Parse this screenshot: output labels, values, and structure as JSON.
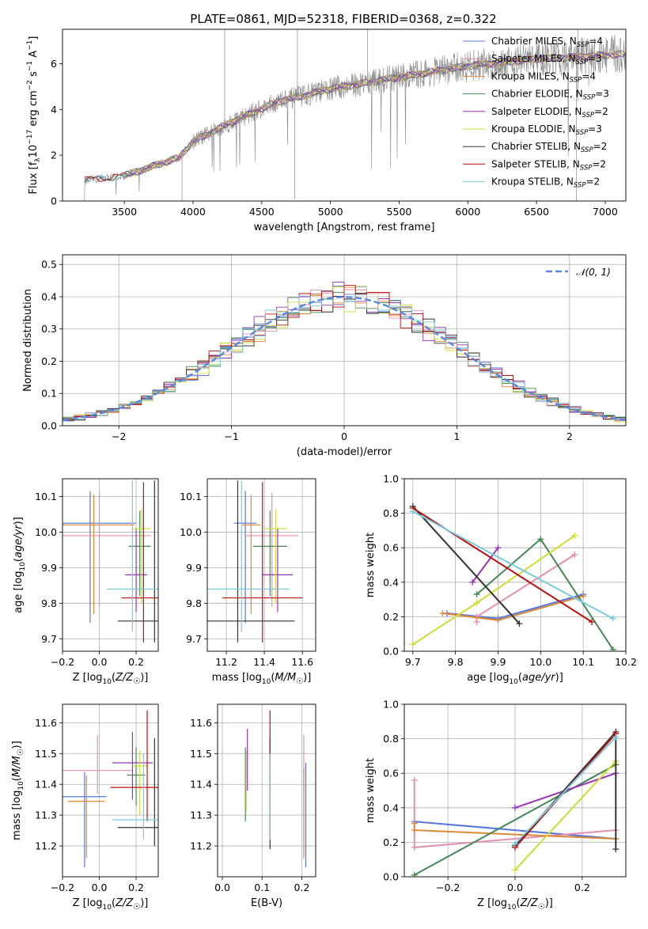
{
  "title": "PLATE=0861, MJD=52318, FIBERID=0368, z=0.322",
  "colors": {
    "chabrier_miles": "#5577dd",
    "salpeter_miles": "#e58fb0",
    "kroupa_miles": "#dd8833",
    "chabrier_elodie": "#448855",
    "salpeter_elodie": "#9933bb",
    "kroupa_elodie": "#ccdd33",
    "chabrier_stelib": "#333333",
    "salpeter_stelib": "#bb1111",
    "kroupa_stelib": "#77ccdd",
    "data": "#888888",
    "gaussian": "#5588dd"
  },
  "chart_data": [
    {
      "id": "spectrum",
      "type": "line",
      "xlabel": "wavelength [Angstrom, rest frame]",
      "ylabel": "Flux [f_λ 10^-17 erg cm^-2 s^-1 A^-1]",
      "xlim": [
        3050,
        7150
      ],
      "ylim": [
        0,
        7.5
      ],
      "xticks": [
        "3500",
        "4000",
        "4500",
        "5000",
        "5500",
        "6000",
        "6500",
        "7000"
      ],
      "yticks": [
        "0",
        "2",
        "4",
        "6"
      ],
      "legend_position": "top-right",
      "legend": [
        {
          "label": "Chabrier MILES, N",
          "sub": "SSP",
          "tail": "=4",
          "key": "chabrier_miles"
        },
        {
          "label": "Salpeter MILES, N",
          "sub": "SSP",
          "tail": "=3",
          "key": "salpeter_miles"
        },
        {
          "label": "Kroupa MILES, N",
          "sub": "SSP",
          "tail": "=4",
          "key": "kroupa_miles"
        },
        {
          "label": "Chabrier ELODIE, N",
          "sub": "SSP",
          "tail": "=3",
          "key": "chabrier_elodie"
        },
        {
          "label": "Salpeter ELODIE, N",
          "sub": "SSP",
          "tail": "=2",
          "key": "salpeter_elodie"
        },
        {
          "label": "Kroupa ELODIE, N",
          "sub": "SSP",
          "tail": "=3",
          "key": "kroupa_elodie"
        },
        {
          "label": "Chabrier STELIB, N",
          "sub": "SSP",
          "tail": "=2",
          "key": "chabrier_stelib"
        },
        {
          "label": "Salpeter STELIB, N",
          "sub": "SSP",
          "tail": "=2",
          "key": "salpeter_stelib"
        },
        {
          "label": "Kroupa STELIB, N",
          "sub": "SSP",
          "tail": "=2",
          "key": "kroupa_stelib"
        }
      ],
      "continuum_anchors": [
        [
          3210,
          0.9
        ],
        [
          3500,
          1.1
        ],
        [
          3700,
          1.5
        ],
        [
          3900,
          1.9
        ],
        [
          4000,
          2.6
        ],
        [
          4300,
          3.5
        ],
        [
          4600,
          4.3
        ],
        [
          5000,
          4.9
        ],
        [
          5500,
          5.4
        ],
        [
          6000,
          5.9
        ],
        [
          6500,
          6.2
        ],
        [
          7100,
          6.4
        ]
      ]
    },
    {
      "id": "residuals",
      "type": "area",
      "xlabel": "(data-model)/error",
      "ylabel": "Normed distribution",
      "xlim": [
        -2.5,
        2.5
      ],
      "ylim": [
        0,
        0.53
      ],
      "xticks": [
        "−2",
        "−1",
        "0",
        "1",
        "2"
      ],
      "yticks": [
        "0.0",
        "0.1",
        "0.2",
        "0.3",
        "0.4",
        "0.5"
      ],
      "legend": "𝒩(0, 1)",
      "legend_position": "top-right",
      "bin_width": 0.1
    },
    {
      "id": "age_vs_Z",
      "type": "scatter",
      "xlabel": "Z [log10(Z/Z☉)]",
      "ylabel": "age [log10(age/yr)]",
      "xlim": [
        -0.2,
        0.32
      ],
      "ylim": [
        9.665,
        10.15
      ],
      "xticks": [
        "−0.2",
        "0.0",
        "0.2"
      ],
      "yticks": [
        "9.7",
        "9.8",
        "9.9",
        "10.0",
        "10.1"
      ],
      "points": [
        {
          "key": "chabrier_miles",
          "x": -0.05,
          "y": 10.025,
          "xerr": 0.25,
          "ylo": 9.745,
          "yhi": 10.115
        },
        {
          "key": "salpeter_miles",
          "x": 0.0,
          "y": 9.99,
          "xerr": 0.28,
          "ylo": 9.79,
          "yhi": 10.11
        },
        {
          "key": "kroupa_miles",
          "x": -0.03,
          "y": 10.02,
          "xerr": 0.22,
          "ylo": 9.77,
          "yhi": 10.105
        },
        {
          "key": "chabrier_elodie",
          "x": 0.22,
          "y": 9.96,
          "xerr": 0.06,
          "ylo": 9.82,
          "yhi": 10.06
        },
        {
          "key": "salpeter_elodie",
          "x": 0.2,
          "y": 9.88,
          "xerr": 0.06,
          "ylo": 9.775,
          "yhi": 10.01
        },
        {
          "key": "kroupa_elodie",
          "x": 0.23,
          "y": 10.01,
          "xerr": 0.05,
          "ylo": 9.8,
          "yhi": 10.065
        },
        {
          "key": "chabrier_stelib",
          "x": 0.3,
          "y": 9.75,
          "xerr": 0.2,
          "ylo": 9.69,
          "yhi": 10.145
        },
        {
          "key": "salpeter_stelib",
          "x": 0.24,
          "y": 9.815,
          "xerr": 0.12,
          "ylo": 9.69,
          "yhi": 10.14
        },
        {
          "key": "kroupa_stelib",
          "x": 0.18,
          "y": 9.84,
          "xerr": 0.14,
          "ylo": 9.72,
          "yhi": 10.145
        }
      ]
    },
    {
      "id": "age_vs_mass",
      "type": "scatter",
      "xlabel": "mass [log10(M/M☉)]",
      "ylabel": "",
      "xlim": [
        11.1,
        11.67
      ],
      "ylim": [
        9.665,
        10.15
      ],
      "xticks": [
        "11.2",
        "11.4",
        "11.6"
      ],
      "yticks": [
        "9.7",
        "9.8",
        "9.9",
        "10.0",
        "10.1"
      ],
      "points": [
        {
          "key": "chabrier_miles",
          "x": 11.3,
          "y": 10.025,
          "xerr": 0.06,
          "ylo": 9.745,
          "yhi": 10.115
        },
        {
          "key": "salpeter_miles",
          "x": 11.44,
          "y": 9.99,
          "xerr": 0.14,
          "ylo": 9.79,
          "yhi": 10.11
        },
        {
          "key": "kroupa_miles",
          "x": 11.33,
          "y": 10.02,
          "xerr": 0.05,
          "ylo": 9.77,
          "yhi": 10.105
        },
        {
          "key": "chabrier_elodie",
          "x": 11.43,
          "y": 9.96,
          "xerr": 0.09,
          "ylo": 9.82,
          "yhi": 10.06
        },
        {
          "key": "salpeter_elodie",
          "x": 11.47,
          "y": 9.88,
          "xerr": 0.08,
          "ylo": 9.775,
          "yhi": 10.01
        },
        {
          "key": "kroupa_elodie",
          "x": 11.46,
          "y": 10.01,
          "xerr": 0.06,
          "ylo": 9.8,
          "yhi": 10.065
        },
        {
          "key": "chabrier_stelib",
          "x": 11.26,
          "y": 9.75,
          "xerr": 0.3,
          "ylo": 9.69,
          "yhi": 10.145
        },
        {
          "key": "salpeter_stelib",
          "x": 11.39,
          "y": 9.815,
          "xerr": 0.21,
          "ylo": 9.69,
          "yhi": 10.14
        },
        {
          "key": "kroupa_stelib",
          "x": 11.28,
          "y": 9.84,
          "xerr": 0.25,
          "ylo": 9.72,
          "yhi": 10.145
        }
      ]
    },
    {
      "id": "weight_vs_age",
      "type": "line",
      "xlabel": "age [log10(age/yr)]",
      "ylabel": "mass weight",
      "xlim": [
        9.68,
        10.2
      ],
      "ylim": [
        0,
        1.0
      ],
      "xticks": [
        "9.7",
        "9.8",
        "9.9",
        "10.0",
        "10.1",
        "10.2"
      ],
      "yticks": [
        "0.0",
        "0.2",
        "0.4",
        "0.6",
        "0.8",
        "1.0"
      ],
      "series": [
        {
          "key": "chabrier_miles",
          "points": [
            [
              9.78,
              0.22
            ],
            [
              9.9,
              0.19
            ],
            [
              10.1,
              0.33
            ]
          ]
        },
        {
          "key": "salpeter_miles",
          "points": [
            [
              9.85,
              0.17
            ],
            [
              9.85,
              0.2
            ],
            [
              10.08,
              0.56
            ]
          ]
        },
        {
          "key": "kroupa_miles",
          "points": [
            [
              9.77,
              0.22
            ],
            [
              9.9,
              0.18
            ],
            [
              10.1,
              0.32
            ]
          ]
        },
        {
          "key": "chabrier_elodie",
          "points": [
            [
              9.85,
              0.33
            ],
            [
              10.0,
              0.65
            ],
            [
              10.17,
              0.01
            ]
          ]
        },
        {
          "key": "salpeter_elodie",
          "points": [
            [
              9.84,
              0.4
            ],
            [
              9.9,
              0.6
            ]
          ]
        },
        {
          "key": "kroupa_elodie",
          "points": [
            [
              9.7,
              0.04
            ],
            [
              9.85,
              0.28
            ],
            [
              10.08,
              0.67
            ]
          ]
        },
        {
          "key": "chabrier_stelib",
          "points": [
            [
              9.7,
              0.84
            ],
            [
              9.95,
              0.16
            ]
          ]
        },
        {
          "key": "salpeter_stelib",
          "points": [
            [
              9.7,
              0.83
            ],
            [
              10.12,
              0.17
            ]
          ]
        },
        {
          "key": "kroupa_stelib",
          "points": [
            [
              9.7,
              0.81
            ],
            [
              10.17,
              0.19
            ]
          ]
        }
      ]
    },
    {
      "id": "mass_vs_Z",
      "type": "scatter",
      "xlabel": "Z [log10(Z/Z☉)]",
      "ylabel": "mass [log10(M/M☉)]",
      "xlim": [
        -0.2,
        0.32
      ],
      "ylim": [
        11.1,
        11.66
      ],
      "xticks": [
        "−0.2",
        "0.0",
        "0.2"
      ],
      "yticks": [
        "11.2",
        "11.3",
        "11.4",
        "11.5",
        "11.6"
      ],
      "points": [
        {
          "key": "chabrier_miles",
          "x": -0.08,
          "y": 11.36,
          "xerr": 0.12,
          "ylo": 11.13,
          "yhi": 11.44
        },
        {
          "key": "salpeter_miles",
          "x": -0.01,
          "y": 11.445,
          "xerr": 0.19,
          "ylo": 11.37,
          "yhi": 11.56
        },
        {
          "key": "kroupa_miles",
          "x": -0.07,
          "y": 11.345,
          "xerr": 0.1,
          "ylo": 11.16,
          "yhi": 11.43
        },
        {
          "key": "chabrier_elodie",
          "x": 0.2,
          "y": 11.43,
          "xerr": 0.05,
          "ylo": 11.33,
          "yhi": 11.52
        },
        {
          "key": "salpeter_elodie",
          "x": 0.18,
          "y": 11.47,
          "xerr": 0.11,
          "ylo": 11.35,
          "yhi": 11.57
        },
        {
          "key": "kroupa_elodie",
          "x": 0.22,
          "y": 11.46,
          "xerr": 0.04,
          "ylo": 11.3,
          "yhi": 11.51
        },
        {
          "key": "chabrier_stelib",
          "x": 0.3,
          "y": 11.26,
          "xerr": 0.2,
          "ylo": 11.2,
          "yhi": 11.55
        },
        {
          "key": "salpeter_stelib",
          "x": 0.26,
          "y": 11.39,
          "xerr": 0.2,
          "ylo": 11.28,
          "yhi": 11.64
        },
        {
          "key": "kroupa_stelib",
          "x": 0.24,
          "y": 11.285,
          "xerr": 0.17,
          "ylo": 11.22,
          "yhi": 11.5
        }
      ]
    },
    {
      "id": "mass_vs_ebv",
      "type": "scatter",
      "xlabel": "E(B-V)",
      "ylabel": "",
      "xlim": [
        -0.012,
        0.235
      ],
      "ylim": [
        11.1,
        11.66
      ],
      "xticks": [
        "0.0",
        "0.1",
        "0.2"
      ],
      "yticks": [
        "11.2",
        "11.3",
        "11.4",
        "11.5",
        "11.6"
      ],
      "points": [
        {
          "key": "chabrier_miles",
          "x": 0.21,
          "ylo": 11.13,
          "yhi": 11.47
        },
        {
          "key": "salpeter_miles",
          "x": 0.205,
          "ylo": 11.37,
          "yhi": 11.56
        },
        {
          "key": "kroupa_miles",
          "x": 0.205,
          "ylo": 11.16,
          "yhi": 11.45
        },
        {
          "key": "chabrier_elodie",
          "x": 0.058,
          "ylo": 11.28,
          "yhi": 11.52
        },
        {
          "key": "salpeter_elodie",
          "x": 0.063,
          "ylo": 11.38,
          "yhi": 11.58
        },
        {
          "key": "kroupa_elodie",
          "x": 0.06,
          "ylo": 11.31,
          "yhi": 11.51
        },
        {
          "key": "chabrier_stelib",
          "x": 0.12,
          "ylo": 11.19,
          "yhi": 11.55
        },
        {
          "key": "salpeter_stelib",
          "x": 0.12,
          "ylo": 11.47,
          "yhi": 11.64
        },
        {
          "key": "kroupa_stelib",
          "x": 0.12,
          "ylo": 11.22,
          "yhi": 11.5
        }
      ]
    },
    {
      "id": "weight_vs_Z",
      "type": "line",
      "xlabel": "Z [log10(Z/Z☉)]",
      "ylabel": "mass weight",
      "xlim": [
        -0.33,
        0.33
      ],
      "ylim": [
        0,
        1.0
      ],
      "xticks": [
        "−0.2",
        "0.0",
        "0.2"
      ],
      "yticks": [
        "0.0",
        "0.2",
        "0.4",
        "0.6",
        "0.8",
        "1.0"
      ],
      "series": [
        {
          "key": "chabrier_miles",
          "points": [
            [
              -0.3,
              0.32
            ],
            [
              0.3,
              0.22
            ]
          ]
        },
        {
          "key": "salpeter_miles",
          "points": [
            [
              -0.3,
              0.56
            ],
            [
              -0.3,
              0.17
            ],
            [
              0.3,
              0.27
            ]
          ]
        },
        {
          "key": "kroupa_miles",
          "points": [
            [
              -0.3,
              0.31
            ],
            [
              -0.3,
              0.27
            ],
            [
              0.3,
              0.22
            ]
          ]
        },
        {
          "key": "chabrier_elodie",
          "points": [
            [
              -0.3,
              0.01
            ],
            [
              0.3,
              0.65
            ]
          ]
        },
        {
          "key": "salpeter_elodie",
          "points": [
            [
              0.0,
              0.4
            ],
            [
              0.3,
              0.6
            ]
          ]
        },
        {
          "key": "kroupa_elodie",
          "points": [
            [
              0.0,
              0.04
            ],
            [
              0.3,
              0.67
            ]
          ]
        },
        {
          "key": "chabrier_stelib",
          "points": [
            [
              0.0,
              0.18
            ],
            [
              0.3,
              0.84
            ],
            [
              0.3,
              0.16
            ]
          ]
        },
        {
          "key": "salpeter_stelib",
          "points": [
            [
              0.0,
              0.17
            ],
            [
              0.3,
              0.83
            ]
          ]
        },
        {
          "key": "kroupa_stelib",
          "points": [
            [
              0.0,
              0.19
            ],
            [
              0.3,
              0.81
            ]
          ]
        }
      ]
    }
  ]
}
